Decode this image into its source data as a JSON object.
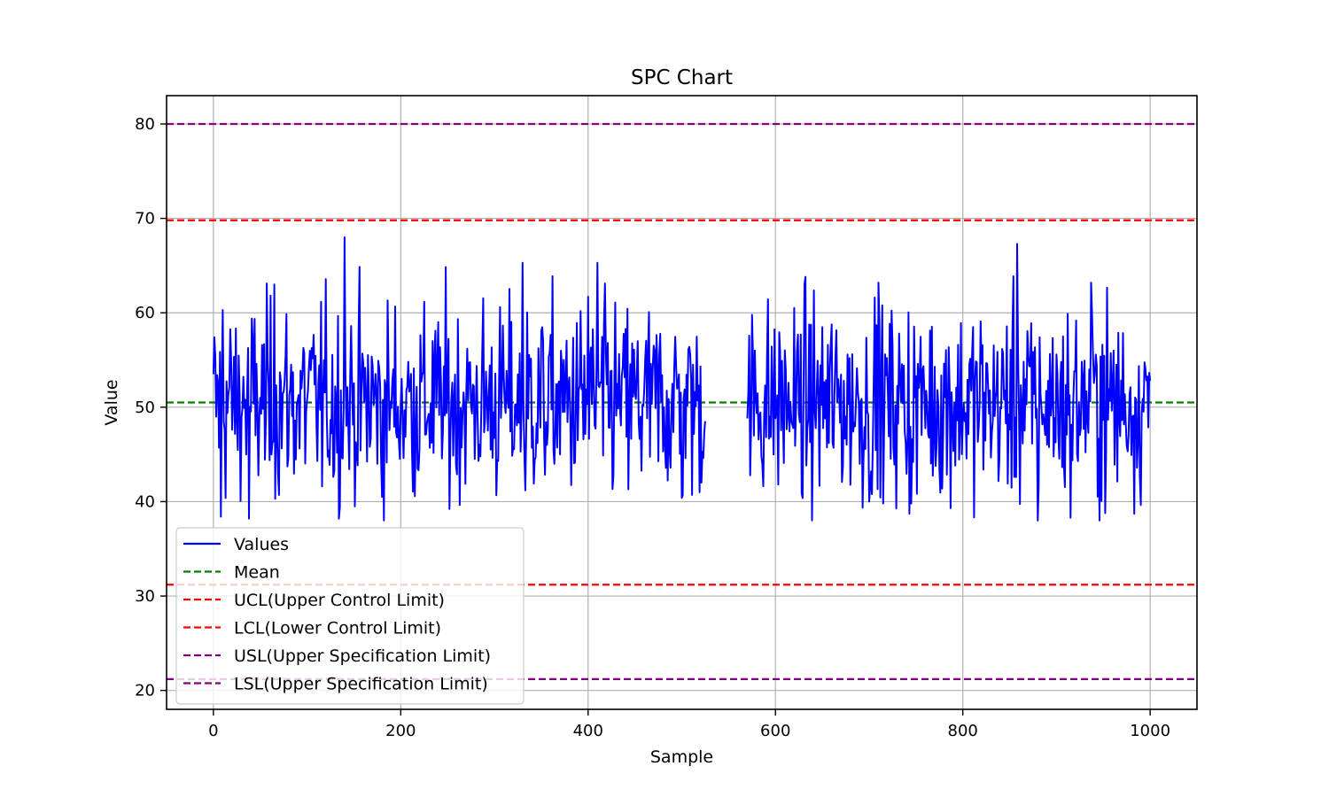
{
  "chart_data": {
    "type": "line",
    "title": "SPC Chart",
    "xlabel": "Sample",
    "ylabel": "Value",
    "xlim": [
      -50,
      1050
    ],
    "ylim": [
      18,
      83
    ],
    "xticks": [
      0,
      200,
      400,
      600,
      800,
      1000
    ],
    "yticks": [
      20,
      30,
      40,
      50,
      60,
      70,
      80
    ],
    "grid": true,
    "legend_position": "lower-left",
    "n_samples": 1001,
    "gap": [
      525,
      570
    ],
    "series": [
      {
        "name": "Values",
        "color": "#0000ff",
        "style": "solid",
        "kind": "process-line",
        "mean": 50.5,
        "min": 38.0,
        "max": 68.0,
        "peaks": [
          [
            0,
            53.5
          ],
          [
            8,
            38.4
          ],
          [
            10,
            60.3
          ],
          [
            38,
            38.2
          ],
          [
            65,
            63.0
          ],
          [
            140,
            68.0
          ],
          [
            180,
            40.5
          ],
          [
            330,
            65.3
          ],
          [
            333,
            41.2
          ],
          [
            400,
            61.7
          ],
          [
            410,
            65.3
          ],
          [
            500,
            40.4
          ],
          [
            540,
            53.0
          ],
          [
            700,
            40.0
          ],
          [
            710,
            63.2
          ],
          [
            745,
            39.8
          ],
          [
            858,
            67.3
          ],
          [
            880,
            38.0
          ],
          [
            915,
            38.3
          ],
          [
            937,
            63.2
          ],
          [
            1000,
            52.8
          ]
        ]
      },
      {
        "name": "Mean",
        "color": "#008000",
        "style": "dashed",
        "y": 50.5
      },
      {
        "name": "UCL(Upper Control Limit)",
        "color": "#ff0000",
        "style": "dashed",
        "y": 69.8
      },
      {
        "name": "LCL(Lower Control Limit)",
        "color": "#ff0000",
        "style": "dashed",
        "y": 31.2
      },
      {
        "name": "USL(Upper Specification Limit)",
        "color": "#800080",
        "style": "dashed",
        "y": 80.0
      },
      {
        "name": "LSL(Upper Specification Limit)",
        "color": "#800080",
        "style": "dashed",
        "y": 21.2
      }
    ]
  }
}
